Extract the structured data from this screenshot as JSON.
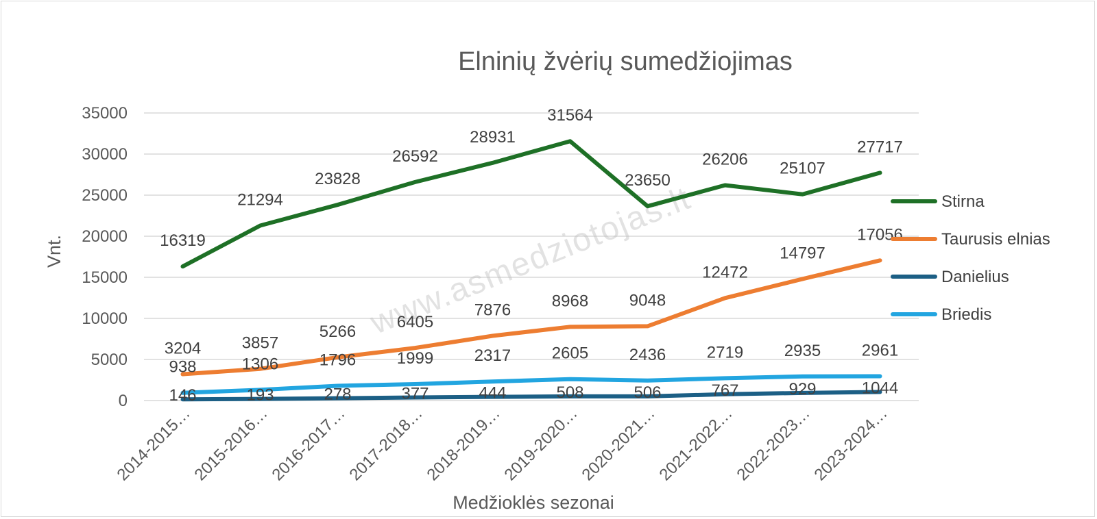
{
  "chart_data": {
    "type": "line",
    "title": "Elninių žvėrių sumedžiojimas",
    "xlabel": "Medžioklės sezonai",
    "ylabel": "Vnt.",
    "ylim": [
      0,
      35000
    ],
    "yticks": [
      0,
      5000,
      10000,
      15000,
      20000,
      25000,
      30000,
      35000
    ],
    "categories": [
      "2014-2015…",
      "2015-2016…",
      "2016-2017…",
      "2017-2018…",
      "2018-2019…",
      "2019-2020…",
      "2020-2021…",
      "2021-2022…",
      "2022-2023…",
      "2023-2024…"
    ],
    "grid": true,
    "legend_position": "right",
    "series": [
      {
        "name": "Stirna",
        "color": "#1e7026",
        "values": [
          16319,
          21294,
          23828,
          26592,
          28931,
          31564,
          23650,
          26206,
          25107,
          27717
        ]
      },
      {
        "name": "Taurusis elnias",
        "color": "#ed7d31",
        "values": [
          3204,
          3857,
          5266,
          6405,
          7876,
          8968,
          9048,
          12472,
          14797,
          17056
        ]
      },
      {
        "name": "Danielius",
        "color": "#1c5f85",
        "values": [
          146,
          193,
          278,
          377,
          444,
          508,
          506,
          767,
          929,
          1044
        ]
      },
      {
        "name": "Briedis",
        "color": "#22a5e0",
        "values": [
          938,
          1306,
          1796,
          1999,
          2317,
          2605,
          2436,
          2719,
          2935,
          2961
        ]
      }
    ],
    "watermark": "www.asmedziotojas.lt"
  }
}
